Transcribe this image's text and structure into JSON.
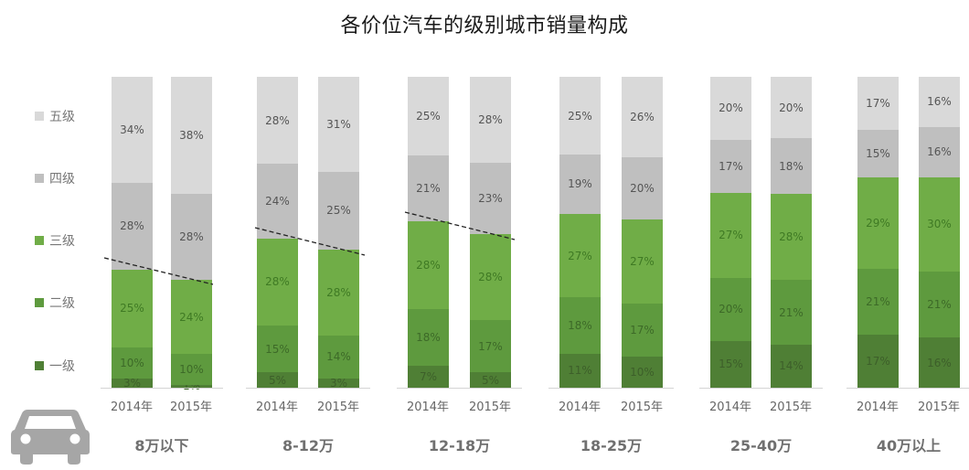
{
  "title": "各价位汽车的级别城市销量构成",
  "legend": [
    {
      "label": "五级",
      "color": "#d9d9d9"
    },
    {
      "label": "四级",
      "color": "#bfbfbf"
    },
    {
      "label": "三级",
      "color": "#70ad47"
    },
    {
      "label": "二级",
      "color": "#5e9a3e"
    },
    {
      "label": "一级",
      "color": "#4f7f35"
    }
  ],
  "icons": {
    "car": "car-icon"
  },
  "chart_data": {
    "type": "bar",
    "stacked": true,
    "title": "各价位汽车的级别城市销量构成",
    "xlabel": "",
    "ylabel": "",
    "ylim": [
      0,
      100
    ],
    "grid": false,
    "legend_position": "left",
    "groups": [
      "8万以下",
      "8-12万",
      "12-18万",
      "18-25万",
      "25-40万",
      "40万以上"
    ],
    "years": [
      "2014年",
      "2015年"
    ],
    "series_order_bottom_to_top": [
      "一级",
      "二级",
      "三级",
      "四级",
      "五级"
    ],
    "bars": [
      {
        "group": "8万以下",
        "year": "2014年",
        "一级": 3,
        "二级": 10,
        "三级": 25,
        "四级": 28,
        "五级": 34
      },
      {
        "group": "8万以下",
        "year": "2015年",
        "一级": 1,
        "二级": 10,
        "三级": 24,
        "四级": 28,
        "五级": 38
      },
      {
        "group": "8-12万",
        "year": "2014年",
        "一级": 5,
        "二级": 15,
        "三级": 28,
        "四级": 24,
        "五级": 28
      },
      {
        "group": "8-12万",
        "year": "2015年",
        "一级": 3,
        "二级": 14,
        "三级": 28,
        "四级": 25,
        "五级": 31
      },
      {
        "group": "12-18万",
        "year": "2014年",
        "一级": 7,
        "二级": 18,
        "三级": 28,
        "四级": 21,
        "五级": 25
      },
      {
        "group": "12-18万",
        "year": "2015年",
        "一级": 5,
        "二级": 17,
        "三级": 28,
        "四级": 23,
        "五级": 28
      },
      {
        "group": "18-25万",
        "year": "2014年",
        "一级": 11,
        "二级": 18,
        "三级": 27,
        "四级": 19,
        "五级": 25
      },
      {
        "group": "18-25万",
        "year": "2015年",
        "一级": 10,
        "二级": 17,
        "三级": 27,
        "四级": 20,
        "五级": 26
      },
      {
        "group": "25-40万",
        "year": "2014年",
        "一级": 15,
        "二级": 20,
        "三级": 27,
        "四级": 17,
        "五级": 20
      },
      {
        "group": "25-40万",
        "year": "2015年",
        "一级": 14,
        "二级": 21,
        "三级": 28,
        "四级": 18,
        "五级": 20
      },
      {
        "group": "40万以上",
        "year": "2014年",
        "一级": 17,
        "二级": 21,
        "三级": 29,
        "四级": 15,
        "五级": 17
      },
      {
        "group": "40万以上",
        "year": "2015年",
        "一级": 16,
        "二级": 21,
        "三级": 30,
        "四级": 16,
        "五级": 16
      }
    ],
    "series": [
      {
        "name": "一级",
        "values": [
          3,
          1,
          5,
          3,
          7,
          5,
          11,
          10,
          15,
          14,
          17,
          16
        ]
      },
      {
        "name": "二级",
        "values": [
          10,
          10,
          15,
          14,
          18,
          17,
          18,
          17,
          20,
          21,
          21,
          21
        ]
      },
      {
        "name": "三级",
        "values": [
          25,
          24,
          28,
          28,
          28,
          28,
          27,
          27,
          27,
          28,
          29,
          30
        ]
      },
      {
        "name": "四级",
        "values": [
          28,
          28,
          24,
          25,
          21,
          23,
          19,
          20,
          17,
          18,
          15,
          16
        ]
      },
      {
        "name": "五级",
        "values": [
          34,
          38,
          28,
          31,
          25,
          28,
          25,
          26,
          20,
          20,
          17,
          16
        ]
      }
    ],
    "annotations": [
      {
        "type": "dashed-trend-line",
        "groups": [
          "8万以下",
          "8-12万",
          "12-18万"
        ],
        "note": "top of 三级 declining from 2014 to 2015"
      }
    ]
  }
}
